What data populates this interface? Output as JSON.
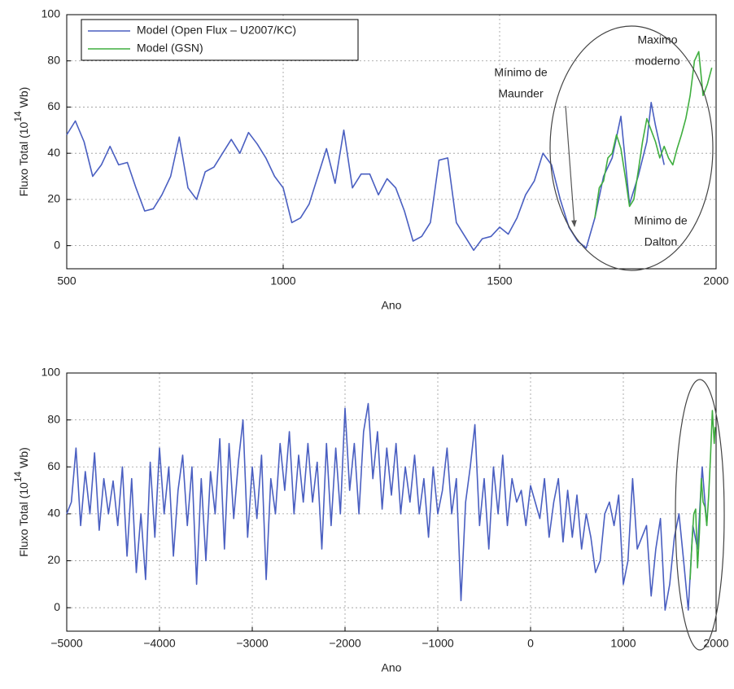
{
  "chart_data": [
    {
      "type": "line",
      "xlabel": "Ano",
      "ylabel": [
        "Fluxo Total (10",
        "14",
        " Wb)"
      ],
      "xlim": [
        500,
        2000
      ],
      "ylim": [
        -10,
        100
      ],
      "xticks": [
        500,
        1000,
        1500,
        2000
      ],
      "yticks": [
        0,
        20,
        40,
        60,
        80,
        100
      ],
      "grid": true,
      "legend": "upper left",
      "series": [
        {
          "name": "Model (Open Flux – U2007/KC)",
          "color": "#4a5fc1",
          "x": [
            500,
            520,
            540,
            560,
            580,
            600,
            620,
            640,
            660,
            680,
            700,
            720,
            740,
            760,
            780,
            800,
            820,
            840,
            860,
            880,
            900,
            920,
            940,
            960,
            980,
            1000,
            1020,
            1040,
            1060,
            1080,
            1100,
            1120,
            1140,
            1160,
            1180,
            1200,
            1220,
            1240,
            1260,
            1280,
            1300,
            1320,
            1340,
            1360,
            1380,
            1400,
            1420,
            1440,
            1460,
            1480,
            1500,
            1520,
            1540,
            1560,
            1580,
            1600,
            1620,
            1640,
            1660,
            1680,
            1700,
            1720,
            1740,
            1760,
            1780,
            1800,
            1820,
            1840,
            1850,
            1860,
            1880
          ],
          "values": [
            48,
            54,
            45,
            30,
            35,
            43,
            35,
            36,
            25,
            15,
            16,
            22,
            30,
            47,
            25,
            20,
            32,
            34,
            40,
            46,
            40,
            49,
            44,
            38,
            30,
            25,
            10,
            12,
            18,
            30,
            42,
            27,
            50,
            25,
            31,
            31,
            22,
            29,
            25,
            15,
            2,
            4,
            10,
            37,
            38,
            10,
            4,
            -2,
            3,
            4,
            8,
            5,
            12,
            22,
            28,
            40,
            35,
            20,
            8,
            2,
            -1,
            12,
            30,
            38,
            56,
            18,
            30,
            45,
            62,
            52,
            35
          ]
        },
        {
          "name": "Model (GSN)",
          "color": "#3fae3f",
          "x": [
            1720,
            1730,
            1740,
            1750,
            1760,
            1770,
            1780,
            1790,
            1800,
            1810,
            1820,
            1830,
            1840,
            1850,
            1860,
            1870,
            1880,
            1890,
            1900,
            1910,
            1920,
            1930,
            1940,
            1950,
            1960,
            1970,
            1980,
            1990
          ],
          "values": [
            12,
            25,
            28,
            38,
            40,
            48,
            42,
            30,
            17,
            20,
            32,
            45,
            55,
            50,
            45,
            38,
            43,
            38,
            35,
            42,
            48,
            55,
            65,
            80,
            84,
            65,
            70,
            77
          ]
        }
      ],
      "annotations": [
        [
          "Mínimo de",
          "Maunder"
        ],
        [
          "Maximo",
          "moderno"
        ],
        [
          "Mínimo de",
          "Dalton"
        ]
      ]
    },
    {
      "type": "line",
      "xlabel": "Ano",
      "ylabel": [
        "Fluxo Total (10",
        "14",
        " Wb)"
      ],
      "xlim": [
        -5000,
        2000
      ],
      "ylim": [
        -10,
        100
      ],
      "xticks": [
        {
          "value": -5000,
          "label": "−5000"
        },
        {
          "value": -4000,
          "label": "−4000"
        },
        {
          "value": -3000,
          "label": "−3000"
        },
        {
          "value": -2000,
          "label": "−2000"
        },
        {
          "value": -1000,
          "label": "−1000"
        },
        0,
        1000,
        2000
      ],
      "yticks": [
        0,
        20,
        40,
        60,
        80,
        100
      ],
      "grid": true,
      "series": [
        {
          "name": "Model (Open Flux – U2007/KC)",
          "color": "#4a5fc1",
          "x": [
            -5000,
            -4950,
            -4900,
            -4850,
            -4800,
            -4750,
            -4700,
            -4650,
            -4600,
            -4550,
            -4500,
            -4450,
            -4400,
            -4350,
            -4300,
            -4250,
            -4200,
            -4150,
            -4100,
            -4050,
            -4000,
            -3950,
            -3900,
            -3850,
            -3800,
            -3750,
            -3700,
            -3650,
            -3600,
            -3550,
            -3500,
            -3450,
            -3400,
            -3350,
            -3300,
            -3250,
            -3200,
            -3150,
            -3100,
            -3050,
            -3000,
            -2950,
            -2900,
            -2850,
            -2800,
            -2750,
            -2700,
            -2650,
            -2600,
            -2550,
            -2500,
            -2450,
            -2400,
            -2350,
            -2300,
            -2250,
            -2200,
            -2150,
            -2100,
            -2050,
            -2000,
            -1950,
            -1900,
            -1850,
            -1800,
            -1750,
            -1700,
            -1650,
            -1600,
            -1550,
            -1500,
            -1450,
            -1400,
            -1350,
            -1300,
            -1250,
            -1200,
            -1150,
            -1100,
            -1050,
            -1000,
            -950,
            -900,
            -850,
            -800,
            -750,
            -700,
            -650,
            -600,
            -550,
            -500,
            -450,
            -400,
            -350,
            -300,
            -250,
            -200,
            -150,
            -100,
            -50,
            0,
            50,
            100,
            150,
            200,
            250,
            300,
            350,
            400,
            450,
            500,
            550,
            600,
            650,
            700,
            750,
            800,
            850,
            900,
            950,
            1000,
            1050,
            1100,
            1150,
            1200,
            1250,
            1300,
            1350,
            1400,
            1450,
            1500,
            1550,
            1600,
            1650,
            1700,
            1750,
            1800,
            1850,
            1900
          ],
          "values": [
            40,
            45,
            68,
            35,
            58,
            40,
            66,
            33,
            55,
            40,
            54,
            35,
            60,
            22,
            55,
            15,
            40,
            12,
            62,
            30,
            68,
            40,
            60,
            22,
            50,
            65,
            35,
            60,
            10,
            55,
            20,
            58,
            40,
            72,
            25,
            70,
            38,
            62,
            80,
            30,
            60,
            38,
            65,
            12,
            55,
            40,
            70,
            50,
            75,
            40,
            65,
            45,
            70,
            45,
            62,
            25,
            70,
            35,
            68,
            40,
            85,
            50,
            70,
            40,
            75,
            87,
            55,
            75,
            42,
            68,
            48,
            70,
            40,
            60,
            45,
            65,
            40,
            55,
            30,
            60,
            40,
            50,
            68,
            40,
            55,
            3,
            45,
            60,
            78,
            35,
            55,
            25,
            60,
            40,
            65,
            35,
            55,
            45,
            50,
            35,
            52,
            45,
            38,
            55,
            30,
            45,
            55,
            28,
            50,
            30,
            48,
            25,
            40,
            30,
            15,
            20,
            40,
            45,
            35,
            48,
            10,
            20,
            55,
            25,
            30,
            35,
            5,
            25,
            38,
            -1,
            10,
            30,
            40,
            20,
            -1,
            35,
            25,
            60,
            35
          ]
        },
        {
          "name": "Model (GSN)",
          "color": "#3fae3f",
          "x": [
            1720,
            1740,
            1760,
            1780,
            1800,
            1820,
            1840,
            1860,
            1880,
            1900,
            1920,
            1940,
            1960,
            1980,
            1990
          ],
          "values": [
            12,
            28,
            40,
            42,
            17,
            32,
            55,
            45,
            43,
            35,
            48,
            65,
            84,
            70,
            77
          ]
        }
      ]
    }
  ]
}
